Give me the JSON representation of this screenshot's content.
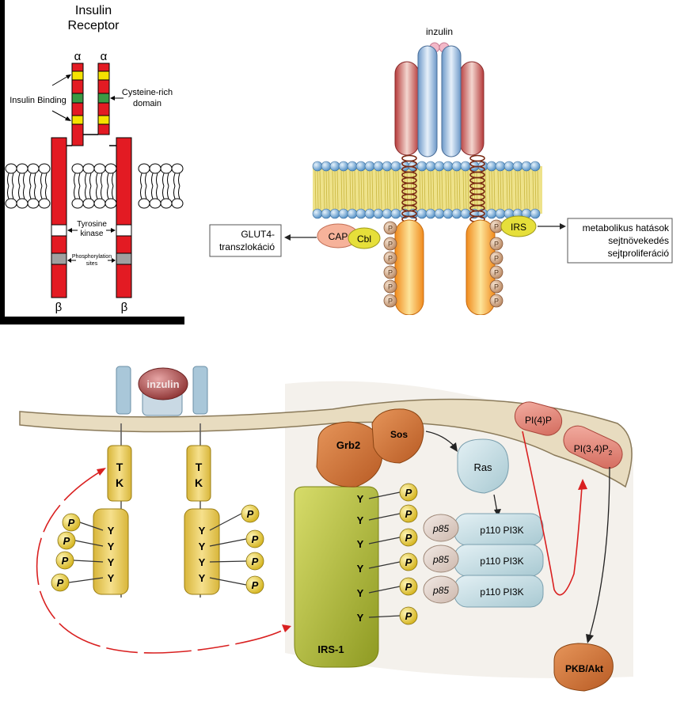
{
  "panel_a": {
    "title_line1": "Insulin",
    "title_line2": "Receptor",
    "alpha_label": "α",
    "beta_label": "β",
    "insulin_binding": "Insulin Binding",
    "cys_line1": "Cysteine-rich",
    "cys_line2": "domain",
    "tk_line1": "Tyrosine",
    "tk_line2": "kinase",
    "phos_line1": "Phosphorylation",
    "phos_line2": "sites",
    "colors": {
      "chain": "#e31b23",
      "binding": "#f5e200",
      "cys": "#3a9a44",
      "phos": "#a0a0a0"
    }
  },
  "panel_b": {
    "ligand": "inzulin",
    "cap": "CAP",
    "cbl": "Cbl",
    "irs": "IRS",
    "p": "P",
    "glut_line1": "GLUT4-",
    "glut_line2": "transzlokáció",
    "effects_line1": "metabolikus hatások",
    "effects_line2": "sejtnövekedés",
    "effects_line3": "sejtproliferáció"
  },
  "panel_c": {
    "ligand": "inzulin",
    "t": "T",
    "k": "K",
    "y": "Y",
    "p": "P",
    "grb2": "Grb2",
    "sos": "Sos",
    "ras": "Ras",
    "p85": "p85",
    "p110": "p110 PI3K",
    "pi4p": "PI(4)P",
    "pi34p_main": "PI(3,4)P",
    "pi34p_sub": "2",
    "irs1": "IRS-1",
    "akt": "PKB/Akt"
  }
}
